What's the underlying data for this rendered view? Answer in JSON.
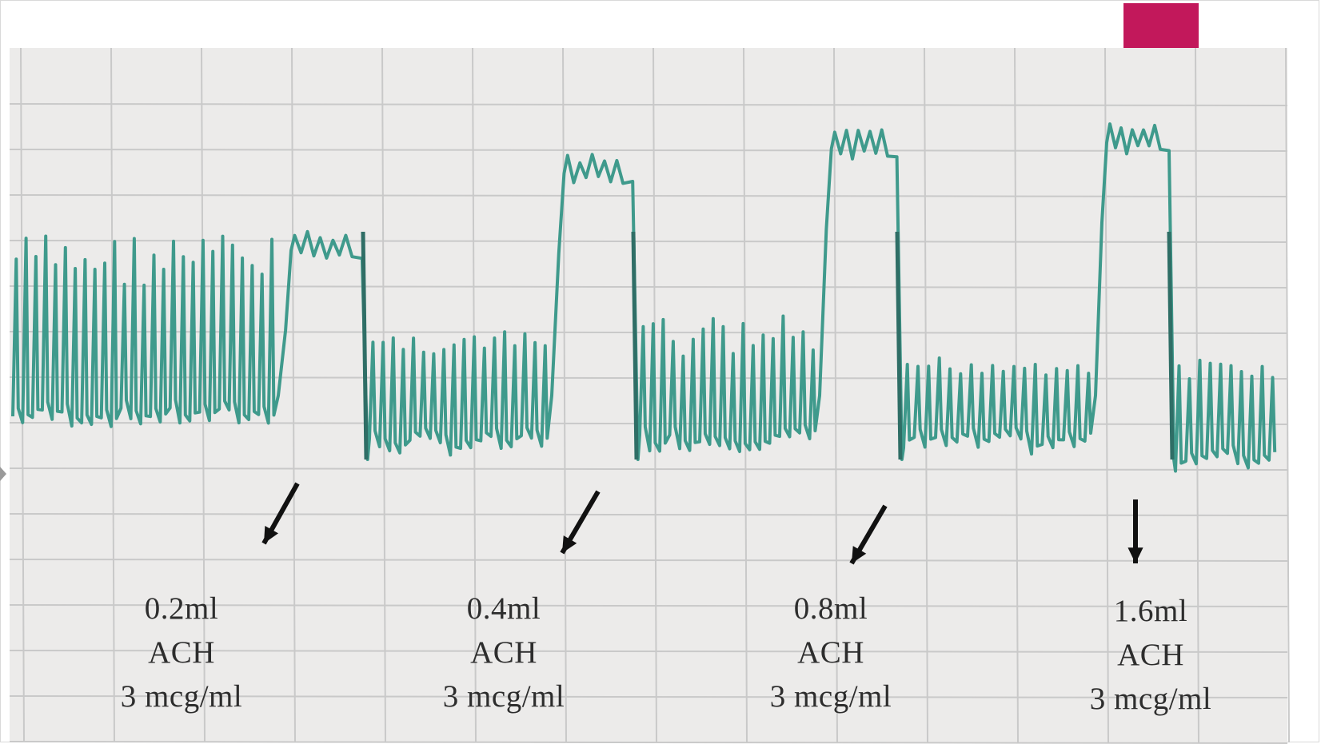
{
  "colors": {
    "trace": "#3f9a8c",
    "trace_dark": "#2f6e66",
    "paper": "#ecebea",
    "grid": "#c9c9c9",
    "accent": "#c2185b",
    "text": "#2d2d2d"
  },
  "chart_data": {
    "type": "line",
    "title": "",
    "xlabel": "",
    "ylabel": "",
    "grid": true,
    "legend": "none",
    "series": [
      {
        "name": "",
        "segments": [
          {
            "phase": "baseline",
            "beats": 27,
            "contraction_level": "high",
            "note": "irregular twitches"
          },
          {
            "phase": "response",
            "dose_index": 0,
            "plateau_level": 0.55
          },
          {
            "phase": "baseline",
            "beats": 18,
            "contraction_level": "medium"
          },
          {
            "phase": "response",
            "dose_index": 1,
            "plateau_level": 0.8
          },
          {
            "phase": "baseline",
            "beats": 18,
            "contraction_level": "medium"
          },
          {
            "phase": "response",
            "dose_index": 2,
            "plateau_level": 0.88
          },
          {
            "phase": "baseline",
            "beats": 18,
            "contraction_level": "low"
          },
          {
            "phase": "response",
            "dose_index": 3,
            "plateau_level": 0.9
          },
          {
            "phase": "baseline",
            "beats": 10,
            "contraction_level": "low"
          }
        ]
      }
    ],
    "annotations": [
      {
        "line1": "0.2ml",
        "line2": "ACH",
        "line3": "3 mcg/ml",
        "arrow": "diagonal"
      },
      {
        "line1": "0.4ml",
        "line2": "ACH",
        "line3": "3 mcg/ml",
        "arrow": "diagonal"
      },
      {
        "line1": "0.8ml",
        "line2": "ACH",
        "line3": "3 mcg/ml",
        "arrow": "diagonal"
      },
      {
        "line1": "1.6ml",
        "line2": "ACH",
        "line3": "3 mcg/ml",
        "arrow": "vertical"
      }
    ]
  }
}
